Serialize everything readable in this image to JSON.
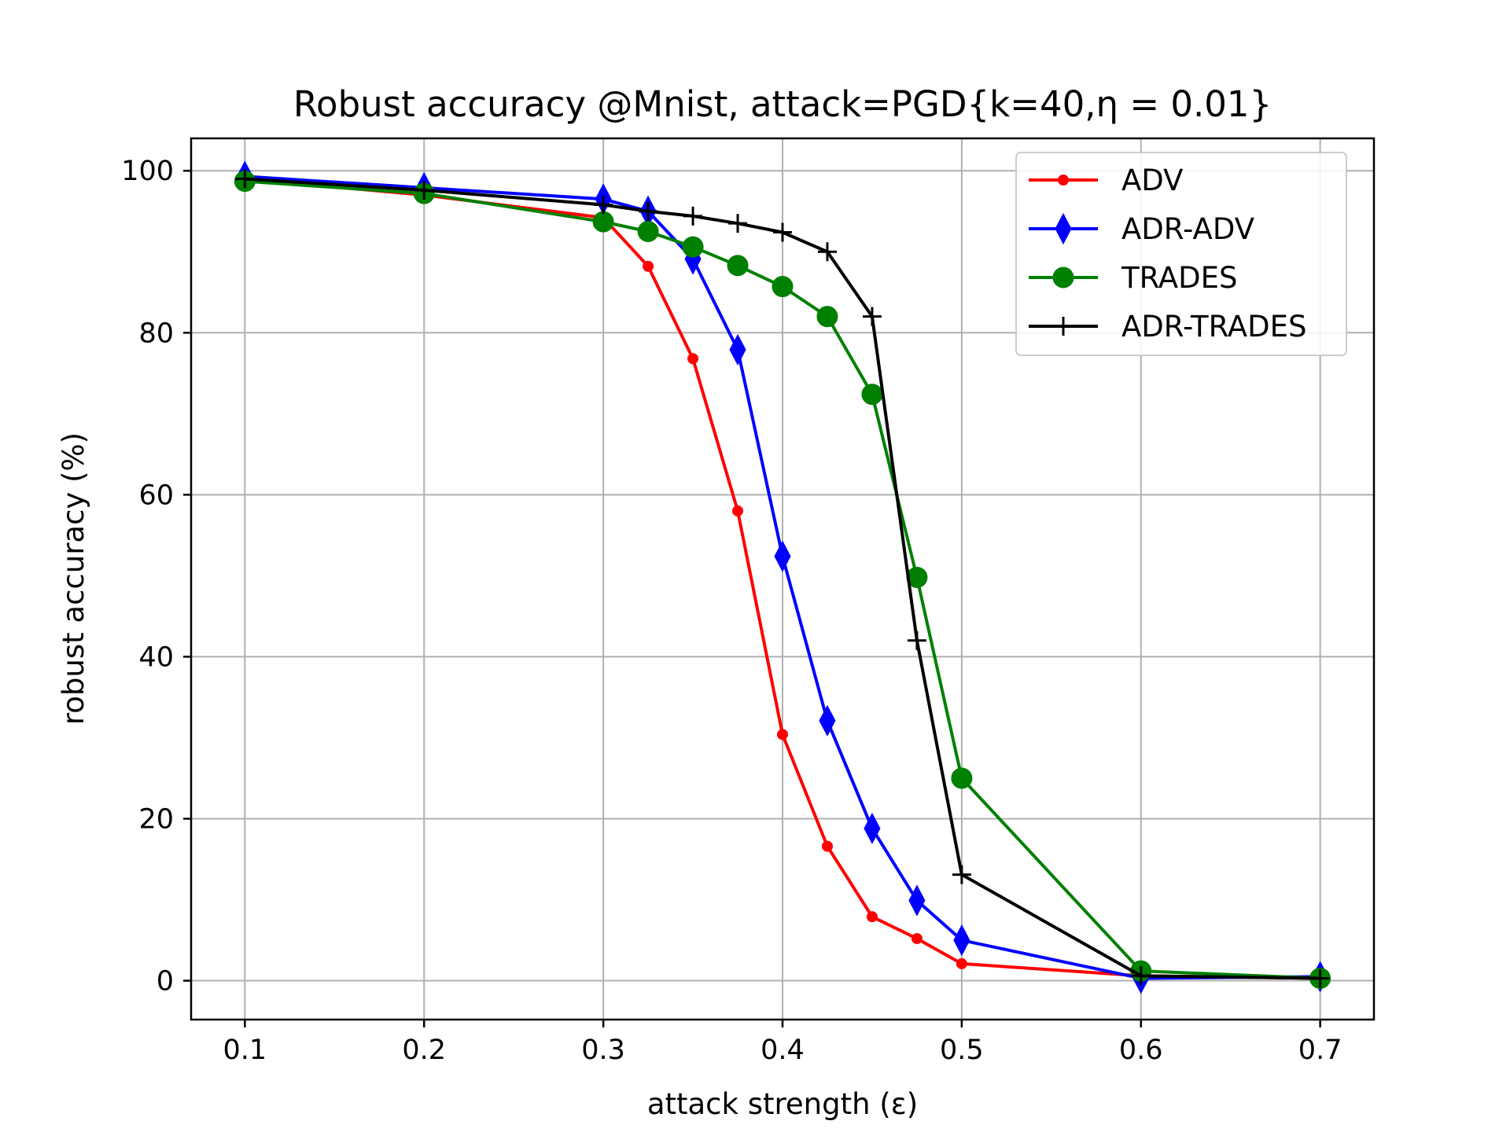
{
  "chart_data": {
    "type": "line",
    "title": "Robust accuracy @Mnist, attack=PGD{k=40,η = 0.01}",
    "xlabel": "attack strength (ε)",
    "ylabel": "robust accuracy (%)",
    "xlim": [
      0.07,
      0.73
    ],
    "ylim": [
      -4.8,
      104.0
    ],
    "xticks": [
      0.1,
      0.2,
      0.3,
      0.4,
      0.5,
      0.6,
      0.7
    ],
    "xtick_labels": [
      "0.1",
      "0.2",
      "0.3",
      "0.4",
      "0.5",
      "0.6",
      "0.7"
    ],
    "yticks": [
      0,
      20,
      40,
      60,
      80,
      100
    ],
    "ytick_labels": [
      "0",
      "20",
      "40",
      "60",
      "80",
      "100"
    ],
    "grid": true,
    "legend_position": "top-right",
    "series": [
      {
        "name": "ADV",
        "color": "#ff0000",
        "marker": "dot",
        "x": [
          0.1,
          0.2,
          0.3,
          0.325,
          0.35,
          0.375,
          0.4,
          0.425,
          0.45,
          0.475,
          0.5,
          0.6,
          0.7
        ],
        "y": [
          99.0,
          97.0,
          94.2,
          88.2,
          76.8,
          58.0,
          30.4,
          16.6,
          7.9,
          5.2,
          2.1,
          0.6,
          0.3
        ]
      },
      {
        "name": "ADR-ADV",
        "color": "#0000ff",
        "marker": "diamond",
        "x": [
          0.1,
          0.2,
          0.3,
          0.325,
          0.35,
          0.375,
          0.4,
          0.425,
          0.45,
          0.475,
          0.5,
          0.6,
          0.7
        ],
        "y": [
          99.3,
          97.9,
          96.5,
          95.0,
          89.1,
          77.9,
          52.4,
          32.1,
          18.8,
          9.9,
          5.0,
          0.3,
          0.5
        ]
      },
      {
        "name": "TRADES",
        "color": "#008000",
        "marker": "circle",
        "x": [
          0.1,
          0.2,
          0.3,
          0.325,
          0.35,
          0.375,
          0.4,
          0.425,
          0.45,
          0.475,
          0.5,
          0.6,
          0.7
        ],
        "y": [
          98.7,
          97.2,
          93.7,
          92.5,
          90.6,
          88.3,
          85.7,
          82.0,
          72.4,
          49.8,
          25.0,
          1.2,
          0.3
        ]
      },
      {
        "name": "ADR-TRADES",
        "color": "#000000",
        "marker": "plus",
        "x": [
          0.1,
          0.2,
          0.3,
          0.325,
          0.35,
          0.375,
          0.4,
          0.425,
          0.45,
          0.475,
          0.5,
          0.6,
          0.7
        ],
        "y": [
          99.0,
          97.6,
          95.8,
          95.0,
          94.4,
          93.5,
          92.4,
          90.0,
          82.0,
          42.0,
          13.1,
          0.6,
          0.3
        ]
      }
    ]
  }
}
